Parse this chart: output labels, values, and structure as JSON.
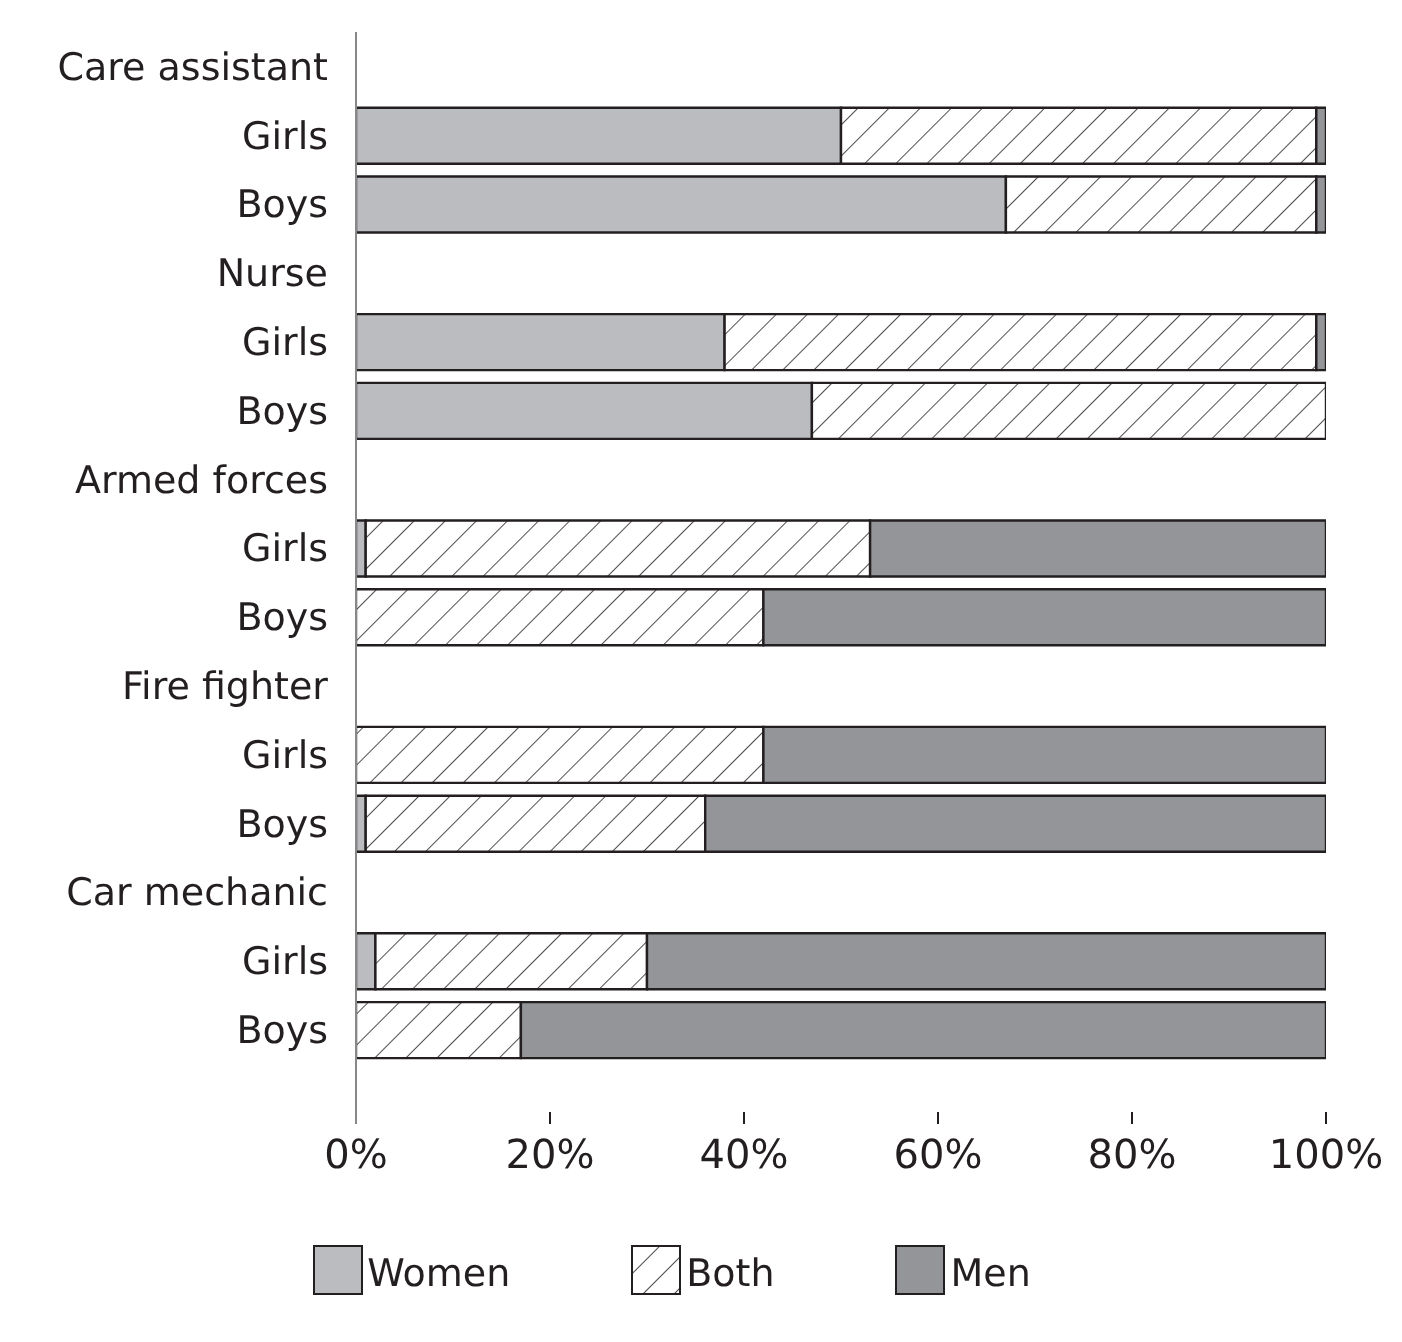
{
  "chart_data": {
    "type": "bar",
    "orientation": "horizontal",
    "stacked": true,
    "categories": [
      "Care assistant",
      "Girls",
      "Boys",
      "Nurse",
      "Girls",
      "Boys",
      "Armed forces",
      "Girls",
      "Boys",
      "Fire fighter",
      "Girls",
      "Boys",
      "Car mechanic",
      "Girls",
      "Boys"
    ],
    "series": [
      {
        "name": "Women",
        "color": "#bbbcbf",
        "values": [
          null,
          50,
          67,
          null,
          38,
          47,
          null,
          1,
          0,
          null,
          0,
          1,
          null,
          2,
          0
        ]
      },
      {
        "name": "Both",
        "color": "#231f20",
        "values": [
          null,
          49,
          32,
          null,
          61,
          53,
          null,
          52,
          42,
          null,
          42,
          35,
          null,
          28,
          17
        ]
      },
      {
        "name": "Men",
        "color": "#939598",
        "values": [
          null,
          1,
          1,
          null,
          1,
          0,
          null,
          47,
          58,
          null,
          58,
          64,
          null,
          70,
          83
        ]
      }
    ],
    "xlim": [
      0,
      100
    ],
    "xticks": [
      {
        "value": 0,
        "label": "0%"
      },
      {
        "value": 20,
        "label": "20%"
      },
      {
        "value": 40,
        "label": "40%"
      },
      {
        "value": 60,
        "label": "60%"
      },
      {
        "value": 80,
        "label": "80%"
      },
      {
        "value": 100,
        "label": "100%"
      }
    ],
    "grid": false,
    "legend": "bottom"
  }
}
